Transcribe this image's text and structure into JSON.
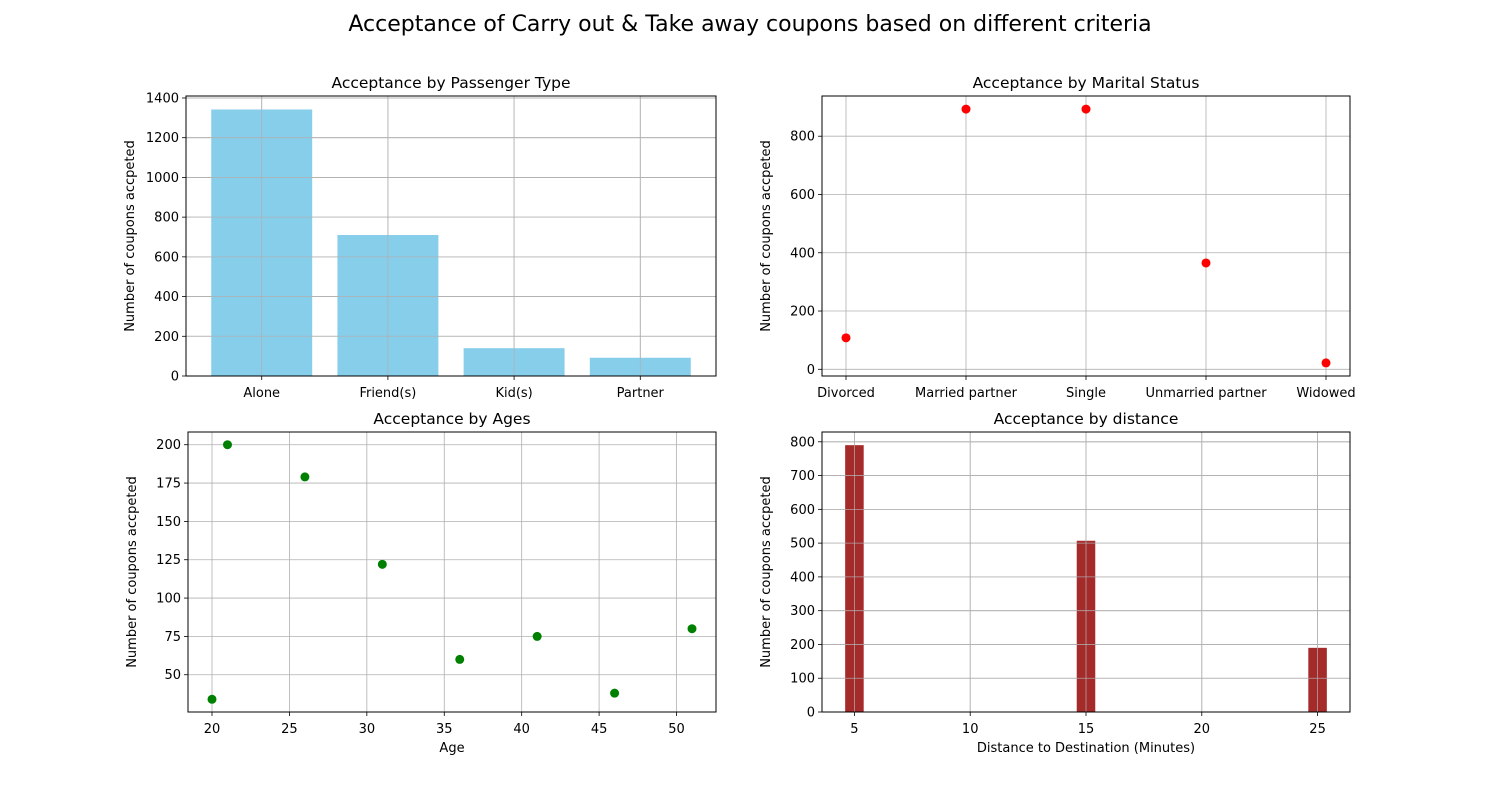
{
  "figure": {
    "suptitle": "Acceptance of Carry out & Take away coupons based on different criteria"
  },
  "chart_data": [
    {
      "type": "bar",
      "title": "Acceptance by Passenger Type",
      "xlabel": "",
      "ylabel": "Number of coupons accpeted",
      "categories": [
        "Alone",
        "Friend(s)",
        "Kid(s)",
        "Partner"
      ],
      "values": [
        1342,
        710,
        140,
        92
      ],
      "ylim": [
        0,
        1410
      ],
      "yticks": [
        0,
        200,
        400,
        600,
        800,
        1000,
        1200,
        1400
      ],
      "color": "#87ceeb",
      "grid": true
    },
    {
      "type": "scatter",
      "title": "Acceptance by Marital Status",
      "xlabel": "",
      "ylabel": "Number of coupons accpeted",
      "categories": [
        "Divorced",
        "Married partner",
        "Single",
        "Unmarried partner",
        "Widowed"
      ],
      "values": [
        108,
        893,
        893,
        365,
        22
      ],
      "ylim": [
        -23,
        938
      ],
      "yticks": [
        0,
        200,
        400,
        600,
        800
      ],
      "color": "#ff0000",
      "grid": true
    },
    {
      "type": "scatter",
      "title": "Acceptance by Ages",
      "xlabel": "Age",
      "ylabel": "Number of coupons accpeted",
      "x": [
        20,
        21,
        26,
        31,
        36,
        41,
        46,
        51
      ],
      "y": [
        34,
        200,
        179,
        122,
        60,
        75,
        38,
        80
      ],
      "xlim": [
        18.45,
        52.55
      ],
      "ylim": [
        25.7,
        208.3
      ],
      "xticks": [
        20,
        25,
        30,
        35,
        40,
        45,
        50
      ],
      "yticks": [
        50,
        75,
        100,
        125,
        150,
        175,
        200
      ],
      "color": "#008000",
      "grid": true
    },
    {
      "type": "bar",
      "title": "Acceptance by distance",
      "xlabel": "Distance to Destination (Minutes)",
      "ylabel": "Number of coupons accpeted",
      "bins": [
        {
          "from": 4.6,
          "to": 5.4,
          "value": 790
        },
        {
          "from": 14.6,
          "to": 15.4,
          "value": 507
        },
        {
          "from": 24.6,
          "to": 25.4,
          "value": 190
        }
      ],
      "xlim": [
        3.6,
        26.4
      ],
      "ylim": [
        0,
        829
      ],
      "xticks": [
        5,
        10,
        15,
        20,
        25
      ],
      "yticks": [
        0,
        100,
        200,
        300,
        400,
        500,
        600,
        700,
        800
      ],
      "color": "#a52a2a",
      "grid": true
    }
  ]
}
